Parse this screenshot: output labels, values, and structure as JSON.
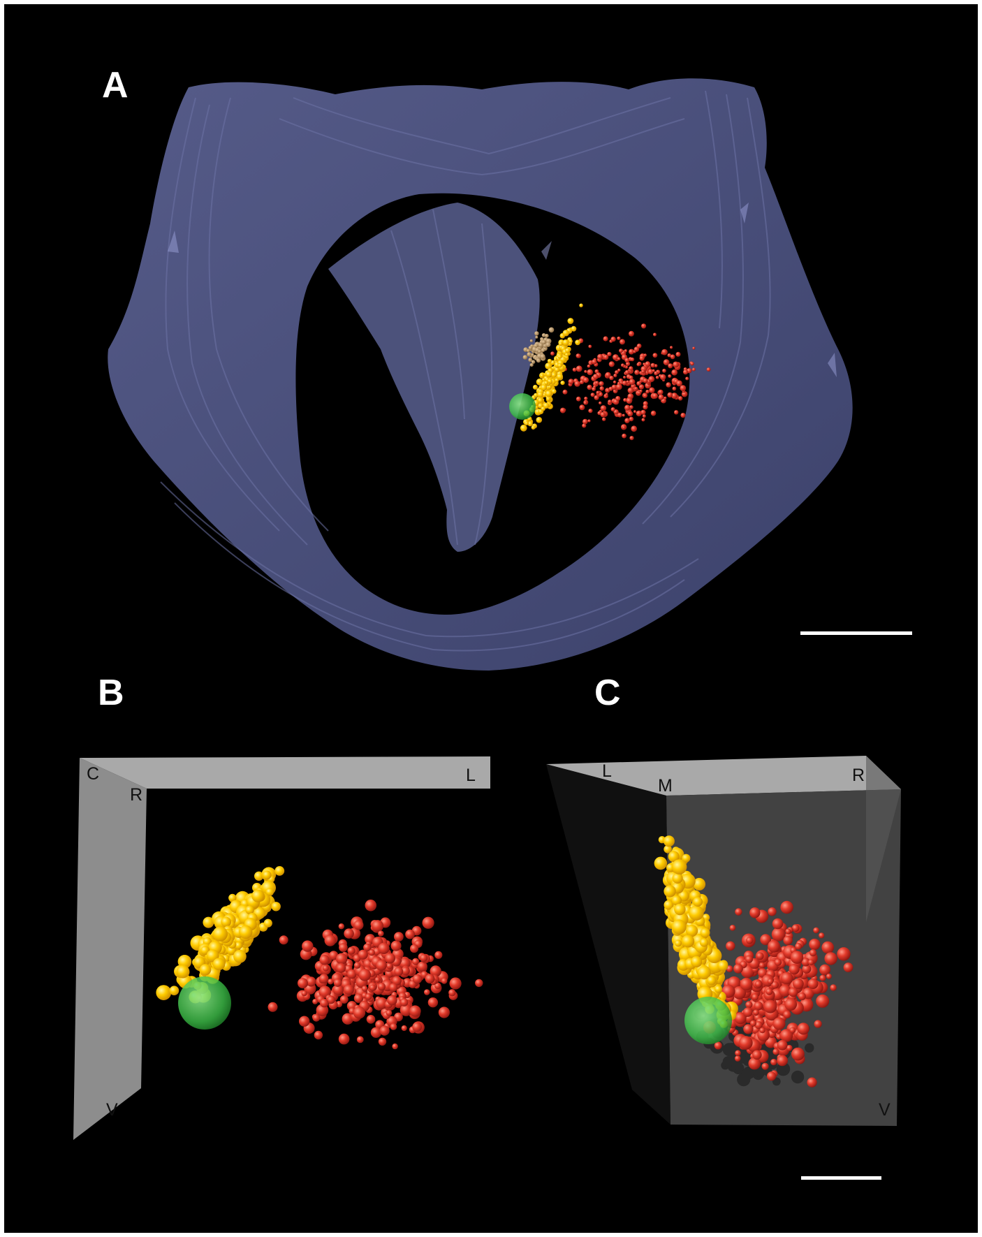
{
  "panels": {
    "a": {
      "label": "A"
    },
    "b": {
      "label": "B",
      "axes": {
        "c": "C",
        "r": "R",
        "l": "L",
        "v": "V"
      }
    },
    "c": {
      "label": "C",
      "axes": {
        "l": "L",
        "m": "M",
        "r": "R",
        "v": "V"
      }
    }
  },
  "colors": {
    "background": "#000000",
    "brain_surface": "#4a507a",
    "cluster_yellow": "#ffcc00",
    "cluster_red": "#e23a2a",
    "cluster_tan": "#b8946a",
    "injection_site_green": "#3fc24a",
    "reference_box": "#a8a8a8",
    "scale_bar": "#ffffff"
  },
  "icons": {
    "brain_surface": "brain-surface-mesh",
    "points": "sphere",
    "scale_bar": "scale-bar"
  }
}
